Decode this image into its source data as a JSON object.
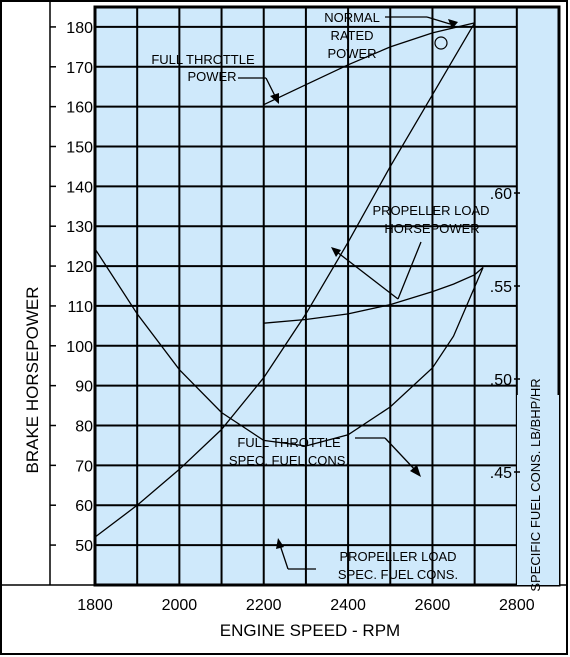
{
  "chart_data": {
    "type": "line",
    "title": "",
    "xlabel": "ENGINE SPEED - RPM",
    "ylabel": "BRAKE HORSEPOWER",
    "y2label": "SPECIFIC FUEL CONS. LB/BHP/HR",
    "xlim": [
      1800,
      2900
    ],
    "ylim": [
      45,
      185
    ],
    "y2lim": [
      0.4,
      0.7
    ],
    "x_ticks": [
      "1800",
      "2000",
      "2200",
      "2400",
      "2600",
      "2800"
    ],
    "y_ticks": [
      "50",
      "60",
      "70",
      "80",
      "90",
      "100",
      "110",
      "120",
      "130",
      "140",
      "150",
      "160",
      "170",
      "180"
    ],
    "y2_ticks": [
      ".45",
      ".50",
      ".55",
      ".60"
    ],
    "grid": true,
    "colors": {
      "plot_bg": "#cfe9fb",
      "border": "#000000",
      "curve": "#000000"
    },
    "series": [
      {
        "axis": "left",
        "x": [
          2200,
          2300,
          2400,
          2500,
          2600,
          2700
        ],
        "y": [
          160.5,
          165.5,
          170.5,
          175,
          178.5,
          181
        ]
      },
      {
        "axis": "left",
        "x": [
          1800,
          1900,
          2000,
          2100,
          2200,
          2300,
          2400,
          2500,
          2600,
          2700
        ],
        "y": [
          52,
          60,
          69,
          79,
          92,
          108,
          126,
          145,
          163,
          181
        ]
      },
      {
        "axis": "right",
        "x": [
          2200,
          2300,
          2400,
          2500,
          2600,
          2650,
          2700,
          2720
        ],
        "y": [
          0.53,
          0.532,
          0.535,
          0.54,
          0.547,
          0.551,
          0.556,
          0.56
        ]
      },
      {
        "axis": "right",
        "x": [
          1800,
          1900,
          2000,
          2100,
          2200,
          2300,
          2400,
          2500,
          2600,
          2650,
          2720
        ],
        "y": [
          0.57,
          0.535,
          0.505,
          0.482,
          0.467,
          0.464,
          0.47,
          0.485,
          0.506,
          0.523,
          0.56
        ]
      }
    ],
    "annotations": {
      "normal_rated": [
        "NORMAL",
        "RATED",
        "POWER"
      ],
      "full_throttle_power": [
        "FULL THROTTLE",
        "POWER"
      ],
      "propeller_load_hp": [
        "PROPELLER LOAD",
        "HORSEPOWER"
      ],
      "full_throttle_sfc": [
        "FULL THROTTLE",
        "SPEC. FUEL CONS."
      ],
      "propeller_load_sfc": [
        "PROPELLER LOAD",
        "SPEC. FUEL CONS."
      ]
    }
  }
}
